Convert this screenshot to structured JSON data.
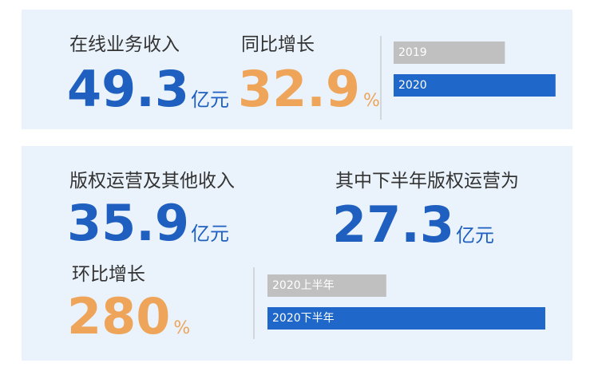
{
  "panels": [
    {
      "metrics": [
        {
          "label": "在线业务收入",
          "value": 49.3,
          "unit": "亿元"
        },
        {
          "label": "同比增长",
          "value": 32.9,
          "unit": "%"
        }
      ]
    },
    {
      "metrics": [
        {
          "label": "版权运营及其他收入",
          "value": 35.9,
          "unit": "亿元"
        },
        {
          "label": "其中下半年版权运营为",
          "value": 27.3,
          "unit": "亿元"
        },
        {
          "label": "环比增长",
          "value": 280,
          "unit": "%"
        }
      ]
    }
  ],
  "chart_data": [
    {
      "type": "bar",
      "orientation": "horizontal",
      "categories": [
        "2019",
        "2020"
      ],
      "values": [
        134,
        195
      ],
      "colors": [
        "#c0c0c0",
        "#1f67c8"
      ],
      "xlim": [
        0,
        200
      ]
    },
    {
      "type": "bar",
      "orientation": "horizontal",
      "categories": [
        "2020上半年",
        "2020下半年"
      ],
      "values": [
        148,
        346
      ],
      "colors": [
        "#c0c0c0",
        "#1f67c8"
      ],
      "xlim": [
        0,
        350
      ]
    }
  ]
}
